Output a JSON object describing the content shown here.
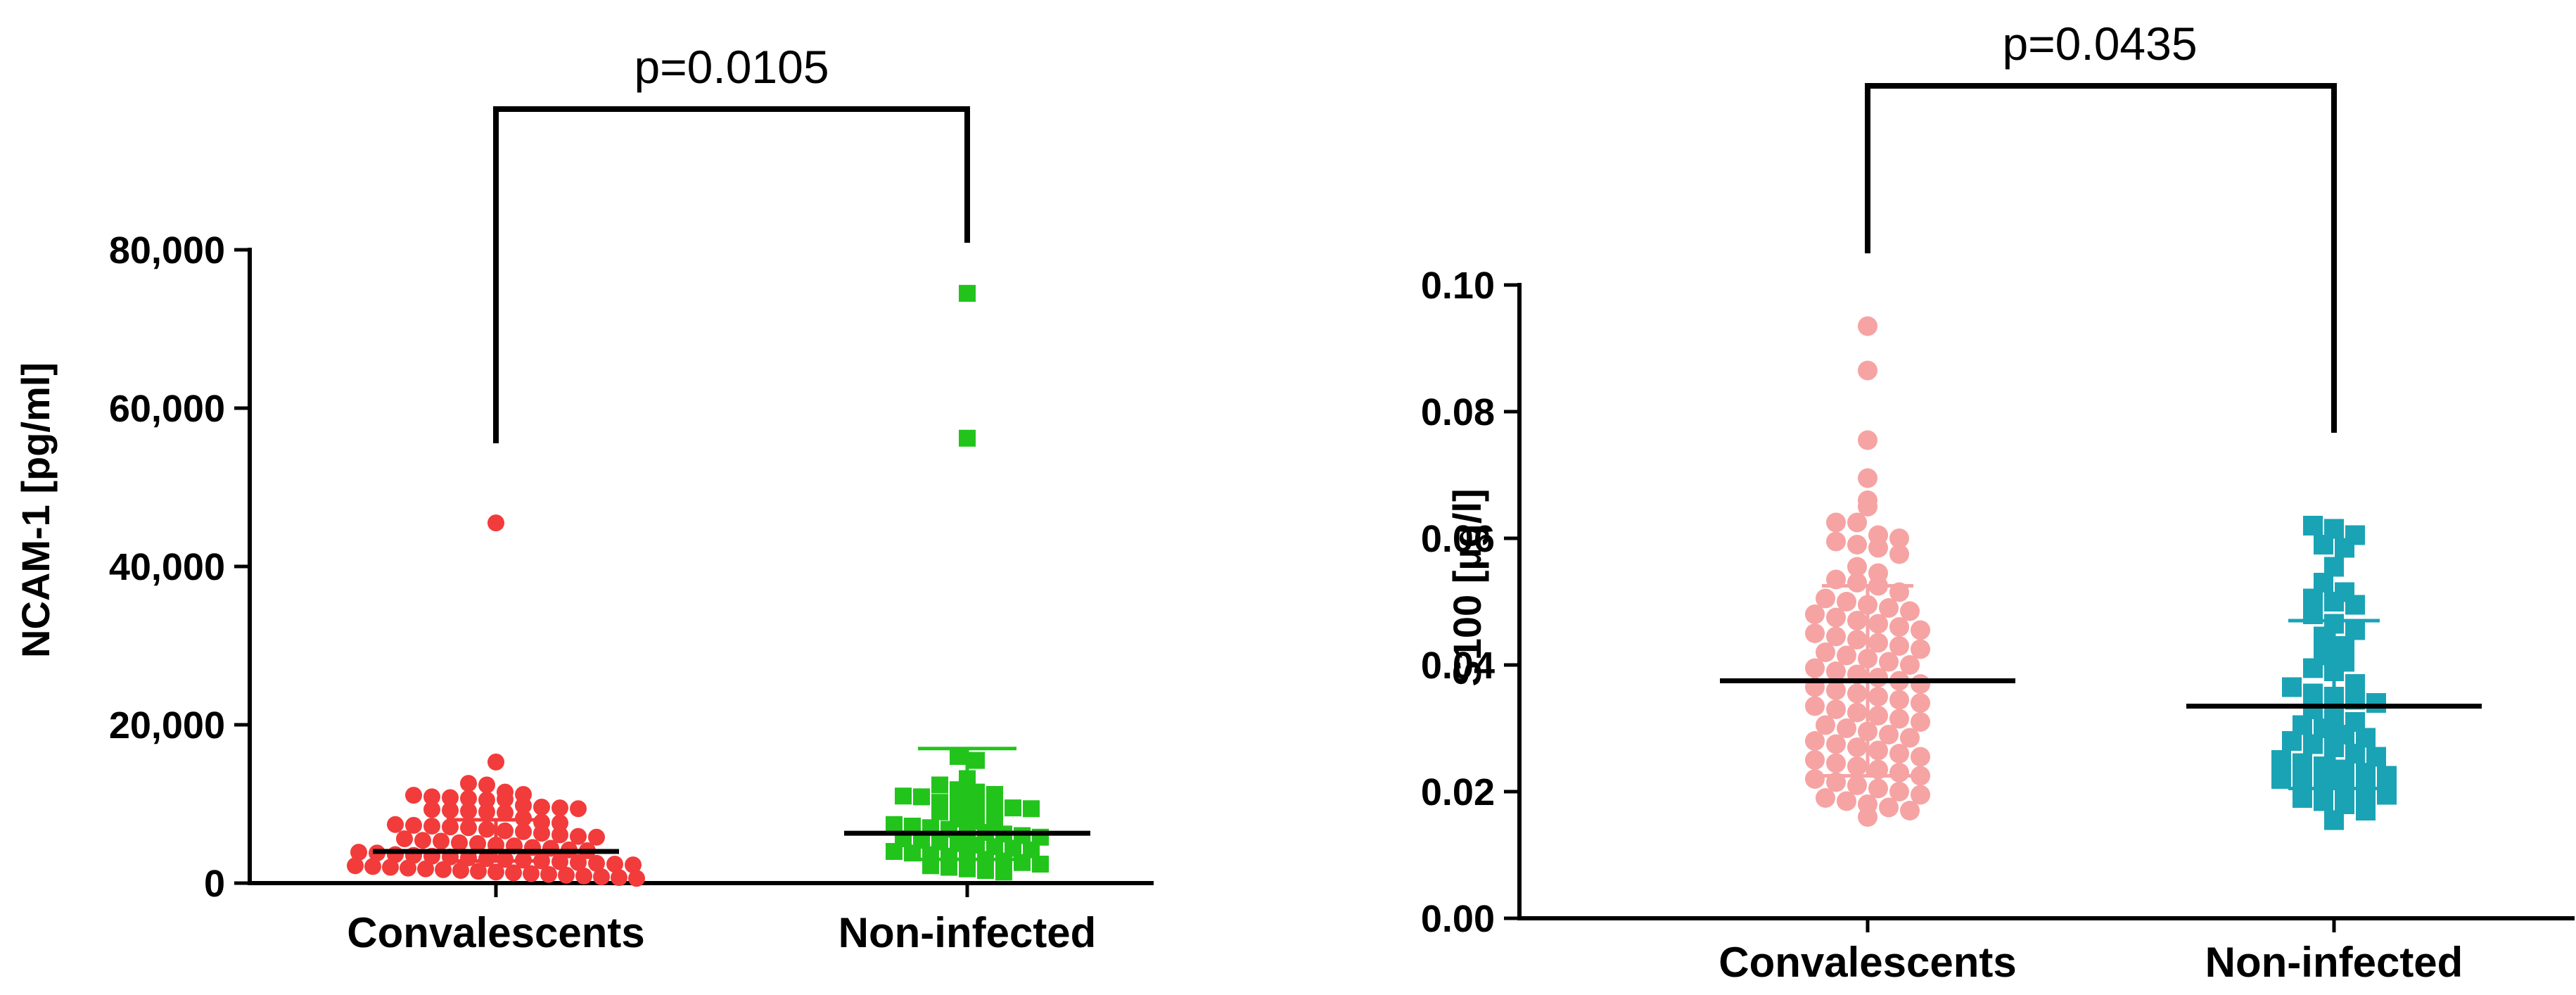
{
  "chart_data": [
    {
      "type": "scatter",
      "subtype": "dot-plot",
      "title": "",
      "xlabel": "",
      "ylabel": "NCAM-1 [pg/ml]",
      "categories": [
        "Convalescents",
        "Non-infected"
      ],
      "ylim": [
        0,
        80000
      ],
      "yticks": [
        0,
        20000,
        40000,
        60000,
        80000
      ],
      "ytick_labels": [
        "0",
        "20,000",
        "40,000",
        "60,000",
        "80,000"
      ],
      "annotation": "p=0.0105",
      "series": [
        {
          "name": "Convalescents",
          "marker": "circle",
          "color": "#f23b3b",
          "mean": 4000,
          "sd_upper": 8000,
          "sd_lower": 2800,
          "values": [
            45500,
            15300,
            12600,
            12400,
            11500,
            11200,
            11100,
            10900,
            10800,
            10700,
            10500,
            10600,
            9800,
            9600,
            9500,
            9400,
            9300,
            9200,
            9100,
            9000,
            8900,
            8200,
            7700,
            7600,
            7400,
            7300,
            7200,
            7100,
            7000,
            6800,
            6600,
            6500,
            6300,
            6100,
            5900,
            5800,
            5600,
            5400,
            5300,
            5100,
            5000,
            4800,
            4700,
            4500,
            4400,
            4200,
            4100,
            3900,
            3800,
            3600,
            3500,
            3400,
            3300,
            3200,
            3100,
            3000,
            2900,
            2800,
            2700,
            2600,
            2500,
            2400,
            2300,
            2200,
            2100,
            2000,
            1900,
            1800,
            1700,
            1600,
            1500,
            1400,
            1300,
            1200,
            1100,
            1000,
            900,
            800,
            700,
            600
          ]
        },
        {
          "name": "Non-infected",
          "marker": "square",
          "color": "#22c41c",
          "mean": 6300,
          "sd_upper": 17000,
          "sd_lower": 3000,
          "values": [
            74500,
            56200,
            16000,
            15500,
            13200,
            12400,
            11800,
            11500,
            11200,
            11000,
            10900,
            10200,
            9800,
            9700,
            9600,
            9500,
            9400,
            9000,
            8100,
            7800,
            7600,
            7400,
            7200,
            7000,
            6800,
            6600,
            6400,
            6200,
            6000,
            5800,
            5600,
            5400,
            5200,
            5000,
            4800,
            4600,
            4400,
            4200,
            4000,
            3800,
            3600,
            3400,
            3200,
            3000,
            2800,
            2600,
            2400,
            2200,
            2000,
            1800,
            1600,
            1400
          ]
        }
      ]
    },
    {
      "type": "scatter",
      "subtype": "dot-plot",
      "title": "",
      "xlabel": "",
      "ylabel": "S100 [µg/l]",
      "categories": [
        "Convalescents",
        "Non-infected"
      ],
      "ylim": [
        0,
        0.1
      ],
      "yticks": [
        0,
        0.02,
        0.04,
        0.06,
        0.08,
        0.1
      ],
      "ytick_labels": [
        "0.00",
        "0.02",
        "0.04",
        "0.06",
        "0.08",
        "0.10"
      ],
      "annotation": "p=0.0435",
      "series": [
        {
          "name": "Convalescents",
          "marker": "circle",
          "color": "#f6a3a3",
          "mean": 0.0375,
          "sd_upper": 0.0525,
          "sd_lower": 0.0225,
          "values": [
            0.0935,
            0.0865,
            0.0755,
            0.0695,
            0.066,
            0.065,
            0.0625,
            0.0625,
            0.0605,
            0.06,
            0.0595,
            0.059,
            0.0585,
            0.0575,
            0.0555,
            0.0545,
            0.0535,
            0.053,
            0.0525,
            0.0515,
            0.0505,
            0.05,
            0.0495,
            0.049,
            0.0485,
            0.048,
            0.0475,
            0.047,
            0.0465,
            0.046,
            0.0455,
            0.045,
            0.0445,
            0.044,
            0.0435,
            0.043,
            0.0425,
            0.042,
            0.0415,
            0.041,
            0.0405,
            0.04,
            0.0395,
            0.039,
            0.0385,
            0.038,
            0.0375,
            0.037,
            0.0365,
            0.036,
            0.0355,
            0.035,
            0.0345,
            0.034,
            0.0335,
            0.033,
            0.0325,
            0.032,
            0.0315,
            0.031,
            0.0305,
            0.03,
            0.0295,
            0.029,
            0.0285,
            0.028,
            0.0275,
            0.027,
            0.0265,
            0.026,
            0.0255,
            0.025,
            0.0245,
            0.024,
            0.0235,
            0.023,
            0.0225,
            0.022,
            0.0215,
            0.021,
            0.0205,
            0.02,
            0.0195,
            0.019,
            0.0185,
            0.018,
            0.0175,
            0.017,
            0.016
          ]
        },
        {
          "name": "Non-infected",
          "marker": "square",
          "color": "#1aa3b5",
          "mean": 0.0335,
          "sd_upper": 0.047,
          "sd_lower": 0.0205,
          "values": [
            0.062,
            0.0615,
            0.0605,
            0.059,
            0.0585,
            0.0555,
            0.053,
            0.0515,
            0.0505,
            0.05,
            0.0495,
            0.048,
            0.0465,
            0.0455,
            0.0445,
            0.043,
            0.0415,
            0.0405,
            0.0395,
            0.039,
            0.037,
            0.0365,
            0.0355,
            0.035,
            0.0345,
            0.034,
            0.033,
            0.032,
            0.031,
            0.0305,
            0.03,
            0.029,
            0.0285,
            0.028,
            0.0275,
            0.027,
            0.026,
            0.0255,
            0.025,
            0.0245,
            0.024,
            0.0235,
            0.023,
            0.0225,
            0.022,
            0.0215,
            0.021,
            0.0205,
            0.02,
            0.0195,
            0.019,
            0.0185,
            0.018,
            0.017,
            0.0155
          ]
        }
      ]
    }
  ]
}
